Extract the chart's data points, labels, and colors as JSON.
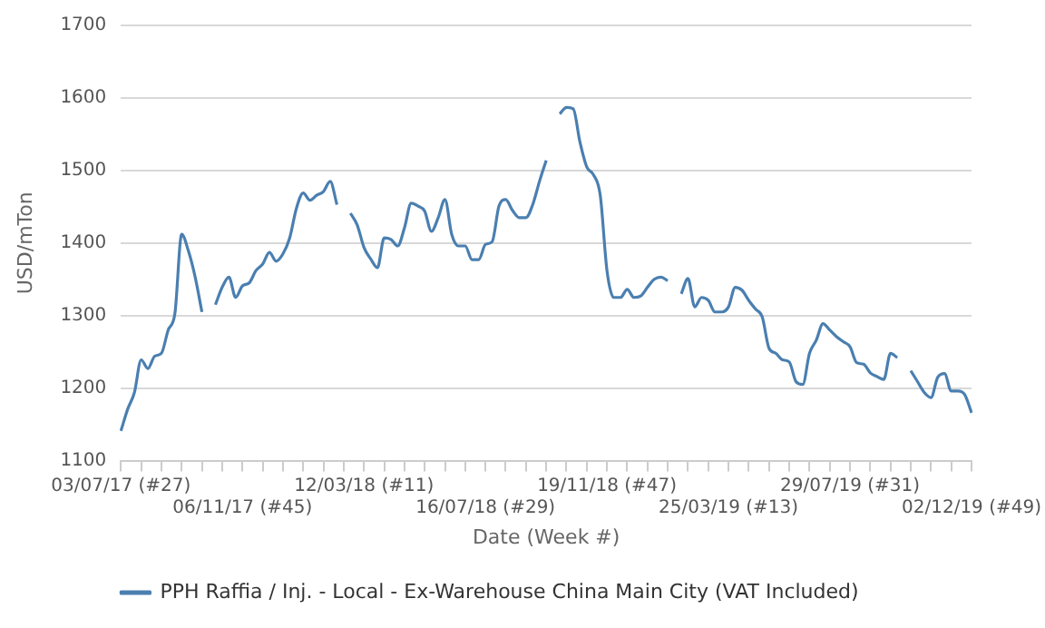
{
  "chart_data": {
    "type": "line",
    "xlabel": "Date (Week #)",
    "ylabel": "USD/mTon",
    "categories": [
      "03/07/17 (#27)",
      null,
      null,
      null,
      null,
      null,
      null,
      null,
      null,
      null,
      null,
      null,
      null,
      null,
      null,
      null,
      null,
      null,
      "06/11/17 (#45)",
      null,
      null,
      null,
      null,
      null,
      null,
      null,
      null,
      null,
      null,
      null,
      null,
      null,
      null,
      null,
      null,
      null,
      "12/03/18 (#11)",
      null,
      null,
      null,
      null,
      null,
      null,
      null,
      null,
      null,
      null,
      null,
      null,
      null,
      null,
      null,
      null,
      null,
      "16/07/18 (#29)",
      null,
      null,
      null,
      null,
      null,
      null,
      null,
      null,
      null,
      null,
      null,
      null,
      null,
      null,
      null,
      null,
      null,
      "19/11/18 (#47)",
      null,
      null,
      null,
      null,
      null,
      null,
      null,
      null,
      null,
      null,
      null,
      null,
      null,
      null,
      null,
      null,
      null,
      "25/03/19 (#13)",
      null,
      null,
      null,
      null,
      null,
      null,
      null,
      null,
      null,
      null,
      null,
      null,
      null,
      null,
      null,
      null,
      null,
      "29/07/19 (#31)",
      null,
      null,
      null,
      null,
      null,
      null,
      null,
      null,
      null,
      null,
      null,
      null,
      null,
      null,
      null,
      null,
      null,
      "02/12/19 (#49)"
    ],
    "series": [
      {
        "name": "PPH Raffia / Inj. - Local - Ex-Warehouse China Main City (VAT Included)",
        "color": "#4a7fb0",
        "values": [
          1141,
          1171,
          1194,
          1239,
          1227,
          1244,
          1248,
          1280,
          1303,
          1412,
          1389,
          1353,
          1305,
          null,
          1315,
          1339,
          1353,
          1325,
          1341,
          1345,
          1362,
          1371,
          1387,
          1375,
          1385,
          1407,
          1448,
          1469,
          1459,
          1466,
          1471,
          1485,
          1453,
          null,
          1441,
          1425,
          1394,
          1378,
          1366,
          1407,
          1405,
          1396,
          1421,
          1455,
          1451,
          1444,
          1416,
          1435,
          1460,
          1412,
          1396,
          1396,
          1377,
          1377,
          1398,
          1402,
          1451,
          1460,
          1445,
          1435,
          1435,
          1453,
          1485,
          1514,
          null,
          1578,
          1587,
          1585,
          1539,
          1505,
          1494,
          1466,
          1362,
          1325,
          1325,
          1336,
          1325,
          1327,
          1339,
          1350,
          1353,
          1348,
          null,
          1330,
          1351,
          1312,
          1325,
          1321,
          1305,
          1305,
          1312,
          1339,
          1335,
          1321,
          1309,
          1298,
          1255,
          1248,
          1239,
          1236,
          1209,
          1205,
          1248,
          1266,
          1289,
          1280,
          1271,
          1264,
          1257,
          1235,
          1233,
          1221,
          1216,
          1212,
          1248,
          1242,
          null,
          1224,
          1209,
          1194,
          1187,
          1215,
          1220,
          1196,
          1196,
          1191,
          1166
        ]
      }
    ],
    "ylim": [
      1100,
      1700
    ],
    "yticks": [
      1100,
      1200,
      1300,
      1400,
      1500,
      1600,
      1700
    ],
    "grid": "y",
    "legend": "bottom",
    "marker": "none",
    "line_style": "solid"
  }
}
